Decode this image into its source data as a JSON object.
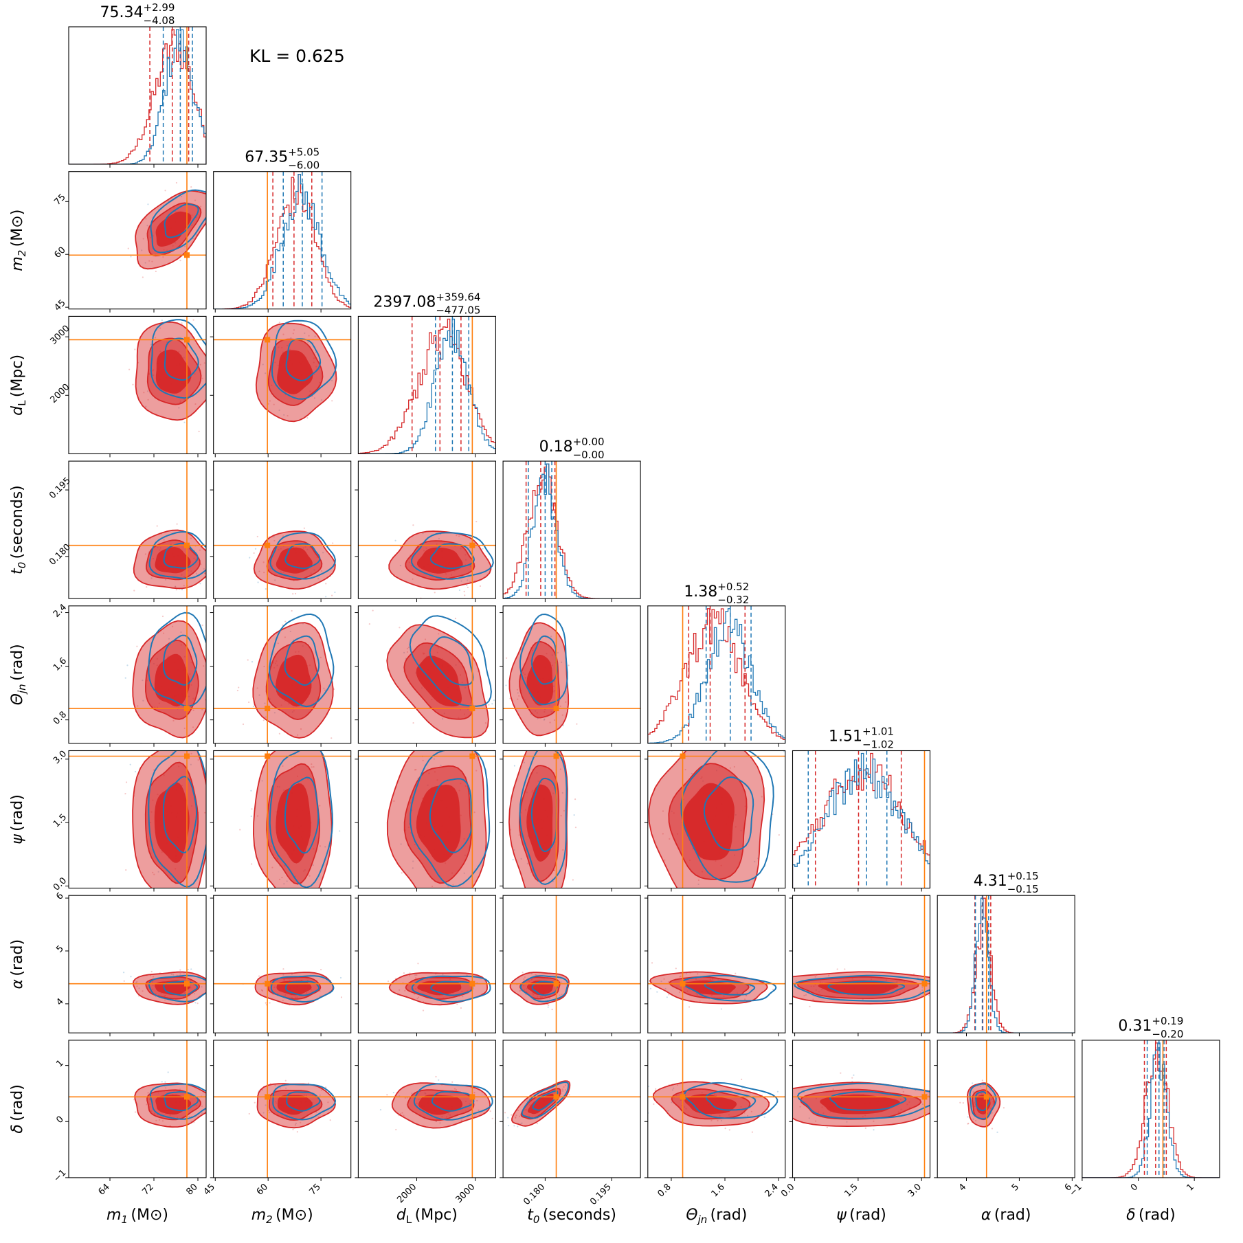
{
  "kl_label": "KL = 0.625",
  "chart_data": {
    "type": "corner",
    "title": "",
    "colors": {
      "posterior_a": "#d62728",
      "posterior_b": "#1f77b4",
      "truth": "#ff7f0e"
    },
    "parameters": [
      {
        "id": "m1",
        "sym": "m",
        "sub": "1",
        "unit": "(M⊙)",
        "range": [
          56.5,
          81.5
        ],
        "ticks": [
          64,
          72,
          80
        ],
        "tick_labels": [
          "64",
          "72",
          "80"
        ],
        "truth": 78.0,
        "title": {
          "median": "75.34",
          "plus": "+2.99",
          "minus": "−4.08"
        },
        "red_q": [
          71.26,
          75.34,
          78.33
        ],
        "blue_q": [
          73.7,
          76.8,
          79.0
        ]
      },
      {
        "id": "m2",
        "sym": "m",
        "sub": "2",
        "unit": "(M⊙)",
        "range": [
          44.5,
          83.5
        ],
        "ticks": [
          45,
          60,
          75
        ],
        "tick_labels": [
          "45",
          "60",
          "75"
        ],
        "truth": 59.8,
        "title": {
          "median": "67.35",
          "plus": "+5.05",
          "minus": "−6.00"
        },
        "red_q": [
          61.35,
          67.35,
          72.4
        ],
        "blue_q": [
          64.3,
          69.7,
          75.3
        ]
      },
      {
        "id": "dl",
        "sym": "d",
        "sub": "L",
        "unit": "(Mpc)",
        "range": [
          1000,
          3350
        ],
        "ticks": [
          2000,
          3000
        ],
        "tick_labels": [
          "2000",
          "3000"
        ],
        "truth": 2950,
        "title": {
          "median": "2397.08",
          "plus": "+359.64",
          "minus": "−477.05"
        },
        "red_q": [
          1920.0,
          2397.08,
          2756.7
        ],
        "blue_q": [
          2320.0,
          2610.0,
          2890.0
        ]
      },
      {
        "id": "t0",
        "sym": "t",
        "sub": "0",
        "unit": "(seconds)",
        "range": [
          0.1705,
          0.2015
        ],
        "ticks": [
          0.18,
          0.195
        ],
        "tick_labels": [
          "0.180",
          "0.195"
        ],
        "truth": 0.1825,
        "title": {
          "median": "0.18",
          "plus": "+0.00",
          "minus": "−0.00"
        },
        "red_q": [
          0.1757,
          0.179,
          0.1822
        ],
        "blue_q": [
          0.1762,
          0.18,
          0.1815
        ]
      },
      {
        "id": "thjn",
        "sym": "Θ",
        "sub": "jn",
        "unit": "(rad)",
        "range": [
          0.45,
          2.5
        ],
        "ticks": [
          0.8,
          1.6,
          2.4
        ],
        "tick_labels": [
          "0.8",
          "1.6",
          "2.4"
        ],
        "truth": 0.97,
        "title": {
          "median": "1.38",
          "plus": "+0.52",
          "minus": "−0.32"
        },
        "red_q": [
          1.06,
          1.38,
          1.9
        ],
        "blue_q": [
          1.32,
          1.68,
          1.99
        ]
      },
      {
        "id": "psi",
        "sym": "ψ",
        "sub": "",
        "unit": "(rad)",
        "range": [
          -0.05,
          3.2
        ],
        "ticks": [
          0.0,
          1.5,
          3.0
        ],
        "tick_labels": [
          "0.0",
          "1.5",
          "3.0"
        ],
        "truth": 3.07,
        "title": {
          "median": "1.51",
          "plus": "+1.01",
          "minus": "−1.02"
        },
        "red_q": [
          0.49,
          1.51,
          2.52
        ],
        "blue_q": [
          0.32,
          1.7,
          2.18
        ]
      },
      {
        "id": "alpha",
        "sym": "α",
        "sub": "",
        "unit": "(rad)",
        "range": [
          3.45,
          6.05
        ],
        "ticks": [
          4,
          5,
          6
        ],
        "tick_labels": [
          "4",
          "5",
          "6"
        ],
        "truth": 4.38,
        "title": {
          "median": "4.31",
          "plus": "+0.15",
          "minus": "−0.15"
        },
        "red_q": [
          4.16,
          4.31,
          4.46
        ],
        "blue_q": [
          4.17,
          4.3,
          4.42
        ]
      },
      {
        "id": "delta",
        "sym": "δ",
        "sub": "",
        "unit": "(rad)",
        "range": [
          -1.0,
          1.45
        ],
        "ticks": [
          -1,
          0,
          1
        ],
        "tick_labels": [
          "−1",
          "0",
          "1"
        ],
        "truth": 0.44,
        "title": {
          "median": "0.31",
          "plus": "+0.19",
          "minus": "−0.20"
        },
        "red_q": [
          0.11,
          0.31,
          0.5
        ],
        "blue_q": [
          0.16,
          0.37,
          0.46
        ]
      }
    ],
    "correlations": {
      "0,1": 0.55,
      "2,4": -0.45,
      "3,7": 0.75,
      "4,6": -0.25,
      "4,7": -0.2,
      "0,2": -0.1
    }
  }
}
